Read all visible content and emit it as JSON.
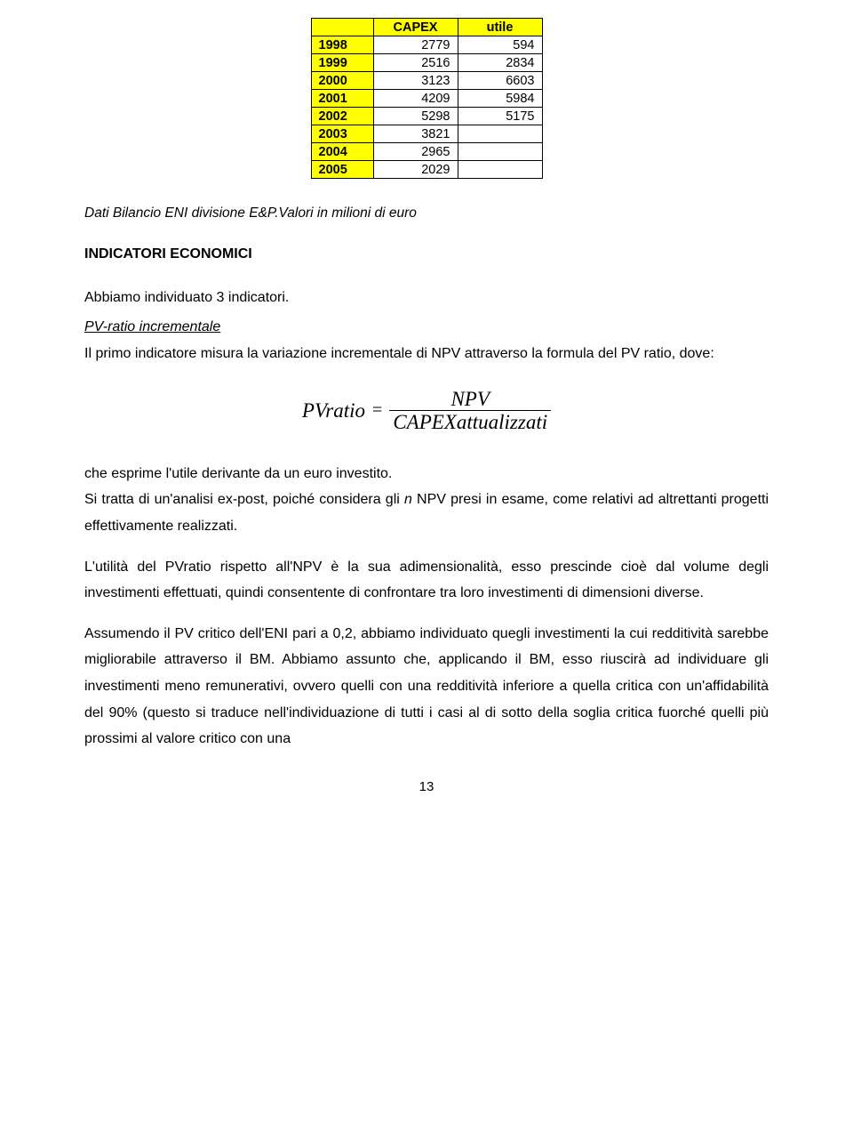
{
  "table": {
    "headers": [
      "",
      "CAPEX",
      "utile"
    ],
    "rows": [
      {
        "year": "1998",
        "capex": "2779",
        "utile": "594"
      },
      {
        "year": "1999",
        "capex": "2516",
        "utile": "2834"
      },
      {
        "year": "2000",
        "capex": "3123",
        "utile": "6603"
      },
      {
        "year": "2001",
        "capex": "4209",
        "utile": "5984"
      },
      {
        "year": "2002",
        "capex": "5298",
        "utile": "5175"
      },
      {
        "year": "2003",
        "capex": "3821",
        "utile": ""
      },
      {
        "year": "2004",
        "capex": "2965",
        "utile": ""
      },
      {
        "year": "2005",
        "capex": "2029",
        "utile": ""
      }
    ]
  },
  "caption": "Dati Bilancio ENI divisione E&P.Valori in milioni di euro",
  "heading": "INDICATORI ECONOMICI",
  "intro": "Abbiamo individuato 3 indicatori.",
  "section1_title": "PV-ratio incrementale",
  "section1_lead": "Il primo indicatore misura la variazione incrementale di NPV attraverso la formula del PV ratio, dove:",
  "formula": {
    "lhs": "PVratio",
    "equals": "=",
    "numerator": "NPV",
    "denominator": "CAPEXattualizzati"
  },
  "para2_intro": "che esprime l'utile derivante da un euro investito.",
  "para2_a": "Si tratta di un'analisi ex-post, poiché considera gli ",
  "para2_n": "n",
  "para2_b": " NPV presi in esame, come relativi ad altrettanti progetti effettivamente realizzati.",
  "para3": "L'utilità del PVratio rispetto all'NPV è la sua adimensionalità, esso prescinde cioè dal volume degli investimenti effettuati, quindi consentente di confrontare tra loro investimenti di dimensioni diverse.",
  "para4": "Assumendo il PV critico dell'ENI pari a 0,2, abbiamo individuato quegli investimenti la cui redditività sarebbe migliorabile attraverso il BM. Abbiamo assunto che, applicando il BM, esso riuscirà ad individuare gli investimenti meno remunerativi, ovvero quelli con una redditività inferiore a quella critica con un'affidabilità del 90% (questo si traduce nell'individuazione di tutti i casi al di sotto della soglia critica fuorché quelli più prossimi al valore critico con una",
  "page_number": "13",
  "colors": {
    "highlight": "#ffff00",
    "border": "#000000",
    "background": "#ffffff",
    "text": "#000000"
  }
}
